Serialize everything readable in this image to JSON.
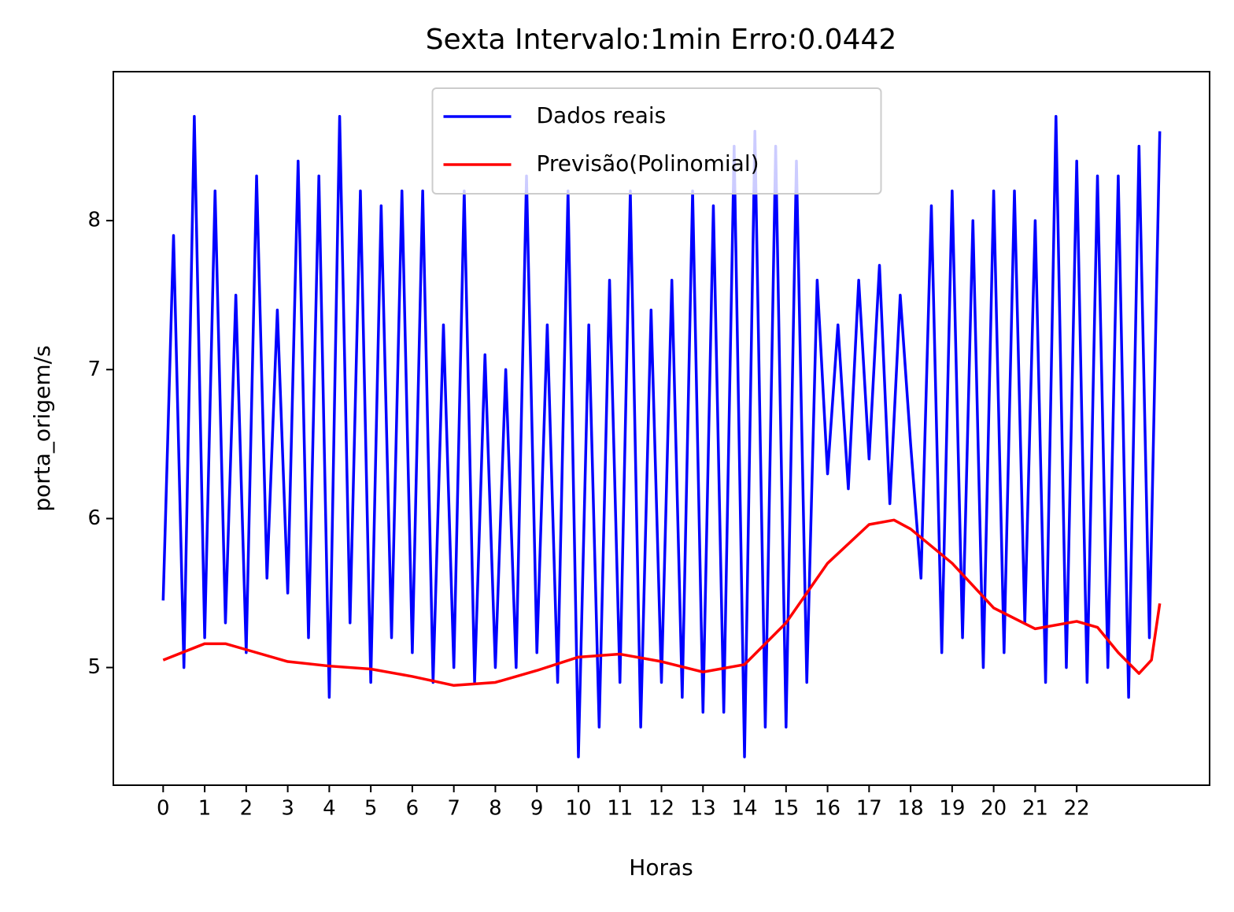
{
  "chart_data": {
    "type": "line",
    "title": "Sexta Intervalo:1min Erro:0.0442",
    "x_label": "Horas",
    "y_label": "porta_origem/s",
    "xlim": [
      -1.2,
      25.2
    ],
    "ylim": [
      4.21,
      9.0
    ],
    "xticks": [
      0,
      1,
      2,
      3,
      4,
      5,
      6,
      7,
      8,
      9,
      10,
      11,
      12,
      13,
      14,
      15,
      16,
      17,
      18,
      19,
      20,
      21,
      22
    ],
    "yticks": [
      5,
      6,
      7,
      8
    ],
    "legend": "upper center",
    "series": [
      {
        "name": "Dados reais",
        "color": "#0000ff",
        "x": [
          0,
          0.25,
          0.5,
          0.75,
          1,
          1.25,
          1.5,
          1.75,
          2,
          2.25,
          2.5,
          2.75,
          3,
          3.25,
          3.5,
          3.75,
          4,
          4.25,
          4.5,
          4.75,
          5,
          5.25,
          5.5,
          5.75,
          6,
          6.25,
          6.5,
          6.75,
          7,
          7.25,
          7.5,
          7.75,
          8,
          8.25,
          8.5,
          8.75,
          9,
          9.25,
          9.5,
          9.75,
          10,
          10.25,
          10.5,
          10.75,
          11,
          11.25,
          11.5,
          11.75,
          12,
          12.25,
          12.5,
          12.75,
          13,
          13.25,
          13.5,
          13.75,
          14,
          14.25,
          14.5,
          14.75,
          15,
          15.25,
          15.5,
          15.75,
          16,
          16.25,
          16.5,
          16.75,
          17,
          17.25,
          17.5,
          17.75,
          18,
          18.25,
          18.5,
          18.75,
          19,
          19.25,
          19.5,
          19.75,
          20,
          20.25,
          20.5,
          20.75,
          21,
          21.25,
          21.5,
          21.75,
          22,
          22.25,
          22.5,
          22.75,
          23,
          23.25,
          23.5,
          23.75,
          24
        ],
        "values": [
          5.45,
          7.9,
          5.0,
          8.7,
          5.2,
          8.2,
          5.3,
          7.5,
          5.1,
          8.3,
          5.6,
          7.4,
          5.5,
          8.4,
          5.2,
          8.3,
          4.8,
          8.7,
          5.3,
          8.2,
          4.9,
          8.1,
          5.2,
          8.2,
          5.1,
          8.2,
          4.9,
          7.3,
          5.0,
          8.2,
          4.9,
          7.1,
          5.0,
          7.0,
          5.0,
          8.3,
          5.1,
          7.3,
          4.9,
          8.2,
          4.4,
          7.3,
          4.6,
          7.6,
          4.9,
          8.2,
          4.6,
          7.4,
          4.9,
          7.6,
          4.8,
          8.2,
          4.7,
          8.1,
          4.7,
          8.5,
          4.4,
          8.6,
          4.6,
          8.5,
          4.6,
          8.4,
          4.9,
          7.6,
          6.3,
          7.3,
          6.2,
          7.6,
          6.4,
          7.7,
          6.1,
          7.5,
          6.5,
          5.6,
          8.1,
          5.1,
          8.2,
          5.2,
          8.0,
          5.0,
          8.2,
          5.1,
          8.2,
          5.3,
          8.0,
          4.9,
          8.7,
          5.0,
          8.4,
          4.9,
          8.3,
          5.0,
          8.3,
          4.8,
          8.5,
          5.2,
          8.6
        ]
      },
      {
        "name": "Previsão(Polinomial)",
        "color": "#ff0000",
        "x": [
          0,
          1,
          1.5,
          2,
          3,
          4,
          5,
          6,
          7,
          8,
          9,
          10,
          11,
          12,
          13,
          14,
          15,
          16,
          17,
          17.6,
          18,
          19,
          20,
          21,
          22,
          22.5,
          23,
          23.5,
          23.8,
          24
        ],
        "values": [
          5.05,
          5.16,
          5.16,
          5.12,
          5.04,
          5.01,
          4.99,
          4.94,
          4.88,
          4.9,
          4.98,
          5.07,
          5.09,
          5.04,
          4.97,
          5.02,
          5.3,
          5.7,
          5.96,
          5.99,
          5.93,
          5.7,
          5.4,
          5.26,
          5.31,
          5.27,
          5.1,
          4.96,
          5.05,
          5.43
        ]
      }
    ]
  }
}
